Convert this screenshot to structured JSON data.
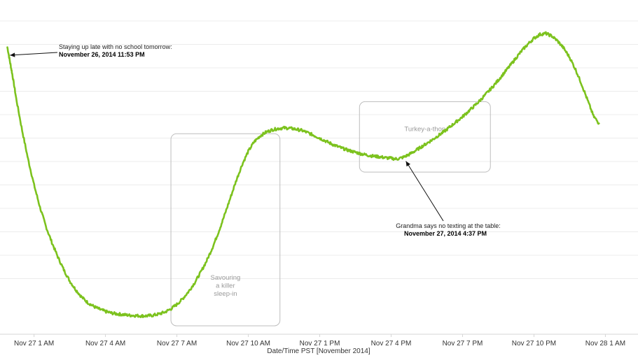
{
  "chart_data": {
    "type": "line",
    "title": "",
    "xlabel": "Date/Time PST [November 2014]",
    "ylabel": "",
    "x_ticks": [
      {
        "label": "Nov 27 1 AM",
        "hour": 1
      },
      {
        "label": "Nov 27 4 AM",
        "hour": 4
      },
      {
        "label": "Nov 27 7 AM",
        "hour": 7
      },
      {
        "label": "Nov 27 10 AM",
        "hour": 10
      },
      {
        "label": "Nov 27 1 PM",
        "hour": 13
      },
      {
        "label": "Nov 27 4 PM",
        "hour": 16
      },
      {
        "label": "Nov 27 7 PM",
        "hour": 19
      },
      {
        "label": "Nov 27 10 PM",
        "hour": 22
      },
      {
        "label": "Nov 28 1 AM",
        "hour": 25
      }
    ],
    "xlim": [
      -0.43,
      26.37
    ],
    "ylim": [
      0,
      100
    ],
    "grid": true,
    "series": [
      {
        "color": "#7cc21e",
        "points": [
          [
            -0.12,
            87
          ],
          [
            0.0,
            82
          ],
          [
            0.1,
            78
          ],
          [
            0.25,
            71
          ],
          [
            0.5,
            61
          ],
          [
            0.75,
            52
          ],
          [
            1.0,
            44
          ],
          [
            1.25,
            37
          ],
          [
            1.5,
            31
          ],
          [
            1.75,
            26
          ],
          [
            2.0,
            21.5
          ],
          [
            2.25,
            17.5
          ],
          [
            2.5,
            14
          ],
          [
            2.75,
            11.3
          ],
          [
            3.0,
            9
          ],
          [
            3.25,
            7.3
          ],
          [
            3.5,
            6.1
          ],
          [
            3.75,
            5.2
          ],
          [
            4.0,
            4.5
          ],
          [
            4.25,
            4.0
          ],
          [
            4.5,
            3.7
          ],
          [
            4.75,
            3.5
          ],
          [
            5.0,
            3.3
          ],
          [
            5.25,
            3.2
          ],
          [
            5.5,
            3.1
          ],
          [
            5.75,
            3.1
          ],
          [
            6.0,
            3.3
          ],
          [
            6.25,
            3.7
          ],
          [
            6.5,
            4.3
          ],
          [
            6.75,
            5.3
          ],
          [
            7.0,
            6.7
          ],
          [
            7.25,
            8.5
          ],
          [
            7.5,
            10.8
          ],
          [
            7.75,
            13.5
          ],
          [
            8.0,
            16.7
          ],
          [
            8.25,
            20.3
          ],
          [
            8.5,
            24.5
          ],
          [
            8.75,
            29.3
          ],
          [
            9.0,
            34.5
          ],
          [
            9.25,
            40
          ],
          [
            9.5,
            45.5
          ],
          [
            9.75,
            50.5
          ],
          [
            10.0,
            54.5
          ],
          [
            10.25,
            57.5
          ],
          [
            10.5,
            59.3
          ],
          [
            10.75,
            60.5
          ],
          [
            11.0,
            61.2
          ],
          [
            11.25,
            61.6
          ],
          [
            11.5,
            61.8
          ],
          [
            11.75,
            61.7
          ],
          [
            12.0,
            61.4
          ],
          [
            12.25,
            61.0
          ],
          [
            12.5,
            60.3
          ],
          [
            12.75,
            59.5
          ],
          [
            13.0,
            58.6
          ],
          [
            13.25,
            57.7
          ],
          [
            13.5,
            56.8
          ],
          [
            13.75,
            56.0
          ],
          [
            14.0,
            55.3
          ],
          [
            14.25,
            54.7
          ],
          [
            14.5,
            54.2
          ],
          [
            14.75,
            53.7
          ],
          [
            15.0,
            53.3
          ],
          [
            15.25,
            53.0
          ],
          [
            15.5,
            52.8
          ],
          [
            15.75,
            52.5
          ],
          [
            16.0,
            52.3
          ],
          [
            16.25,
            52.1
          ],
          [
            16.5,
            52.6
          ],
          [
            16.75,
            53.5
          ],
          [
            17.0,
            54.6
          ],
          [
            17.25,
            55.8
          ],
          [
            17.5,
            57.0
          ],
          [
            17.75,
            58.2
          ],
          [
            18.0,
            59.5
          ],
          [
            18.25,
            60.8
          ],
          [
            18.5,
            62.3
          ],
          [
            18.75,
            63.8
          ],
          [
            19.0,
            65.3
          ],
          [
            19.25,
            67.0
          ],
          [
            19.5,
            68.7
          ],
          [
            19.75,
            70.5
          ],
          [
            20.0,
            72.5
          ],
          [
            20.25,
            74.5
          ],
          [
            20.5,
            76.7
          ],
          [
            20.75,
            79.0
          ],
          [
            21.0,
            81.3
          ],
          [
            21.25,
            83.7
          ],
          [
            21.5,
            86.0
          ],
          [
            21.75,
            88.0
          ],
          [
            22.0,
            89.8
          ],
          [
            22.25,
            91.0
          ],
          [
            22.5,
            91.3
          ],
          [
            22.75,
            90.5
          ],
          [
            23.0,
            88.9
          ],
          [
            23.25,
            86.7
          ],
          [
            23.5,
            83.8
          ],
          [
            23.75,
            80.0
          ],
          [
            24.0,
            75.5
          ],
          [
            24.25,
            70.5
          ],
          [
            24.5,
            65.5
          ],
          [
            24.73,
            63.2
          ]
        ]
      }
    ],
    "annotations": [
      {
        "line1": "Staying up late with no school tomorrow:",
        "line2": "November 26, 2014 11:53 PM",
        "point": [
          -0.1,
          84.5
        ]
      },
      {
        "line1": "Grandma says no texting at the table:",
        "line2": "November 27, 2014 4:37 PM",
        "point": [
          16.62,
          52.3
        ]
      }
    ],
    "regions": [
      {
        "label_lines": [
          "Savouring",
          "a killer",
          "sleep-in"
        ],
        "x": [
          6.75,
          11.33
        ],
        "y": [
          0,
          60
        ]
      },
      {
        "label_lines": [
          "Turkey-a-thon"
        ],
        "x": [
          14.67,
          20.17
        ],
        "y": [
          48,
          70
        ]
      }
    ]
  }
}
